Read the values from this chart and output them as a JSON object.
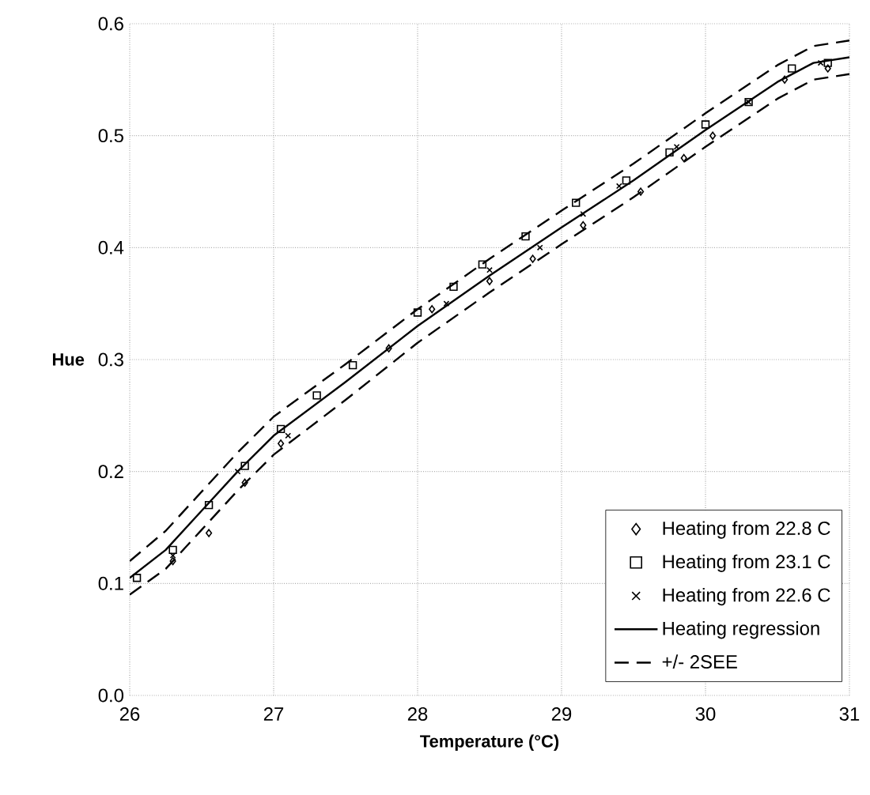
{
  "chart_data": {
    "type": "scatter",
    "xlabel": "Temperature (°C)",
    "ylabel": "Hue",
    "xlim": [
      26,
      31
    ],
    "ylim": [
      0,
      0.6
    ],
    "xticks": [
      26,
      27,
      28,
      29,
      30,
      31
    ],
    "yticks": [
      {
        "value": 0,
        "label": "0.0"
      },
      0.1,
      0.2,
      0.3,
      0.4,
      0.5,
      0.6
    ],
    "grid": true,
    "legend": "bottom right",
    "series": [
      {
        "name": "Heating from 22.8 C",
        "color": "#000000",
        "marker": "diamond",
        "x": [
          26.3,
          26.55,
          26.8,
          27.05,
          27.8,
          28.1,
          28.5,
          28.8,
          29.15,
          29.55,
          29.85,
          30.05,
          30.55,
          30.85
        ],
        "values": [
          0.12,
          0.145,
          0.19,
          0.225,
          0.31,
          0.345,
          0.37,
          0.39,
          0.42,
          0.45,
          0.48,
          0.5,
          0.55,
          0.56
        ]
      },
      {
        "name": "Heating from 23.1 C",
        "color": "#000000",
        "marker": "square",
        "x": [
          26.05,
          26.3,
          26.55,
          26.8,
          27.05,
          27.3,
          27.55,
          28.0,
          28.25,
          28.45,
          28.75,
          29.1,
          29.45,
          29.75,
          30.0,
          30.3,
          30.6,
          30.85
        ],
        "values": [
          0.105,
          0.13,
          0.17,
          0.205,
          0.238,
          0.268,
          0.295,
          0.342,
          0.365,
          0.385,
          0.41,
          0.44,
          0.46,
          0.485,
          0.51,
          0.53,
          0.56,
          0.565
        ]
      },
      {
        "name": "Heating from 22.6 C",
        "color": "#000000",
        "marker": "cross",
        "x": [
          26.3,
          26.75,
          27.1,
          28.2,
          28.5,
          28.85,
          29.15,
          29.4,
          29.8,
          30.3,
          30.8
        ],
        "values": [
          0.125,
          0.2,
          0.232,
          0.35,
          0.38,
          0.4,
          0.43,
          0.455,
          0.49,
          0.53,
          0.565
        ]
      },
      {
        "name": "Heating regression",
        "type": "line",
        "line_style": "solid",
        "color": "#000000",
        "marker": "none",
        "x": [
          26,
          26.25,
          26.5,
          26.75,
          27,
          27.5,
          28,
          28.5,
          29,
          29.5,
          30,
          30.5,
          30.75,
          31
        ],
        "values": [
          0.105,
          0.13,
          0.165,
          0.2,
          0.232,
          0.28,
          0.33,
          0.375,
          0.418,
          0.46,
          0.505,
          0.548,
          0.565,
          0.57
        ]
      },
      {
        "name": "+/- 2SEE",
        "type": "line",
        "line_style": "dashed",
        "color": "#000000",
        "marker": "none",
        "x": [
          26,
          26.25,
          26.5,
          26.75,
          27,
          27.5,
          28,
          28.5,
          29,
          29.5,
          30,
          30.5,
          30.75,
          31
        ],
        "values": [
          0.12,
          0.147,
          0.182,
          0.217,
          0.249,
          0.296,
          0.345,
          0.39,
          0.433,
          0.475,
          0.52,
          0.563,
          0.58,
          0.585
        ]
      },
      {
        "type": "line",
        "line_style": "dashed",
        "color": "#000000",
        "marker": "none",
        "x": [
          26,
          26.25,
          26.5,
          26.75,
          27,
          27.5,
          28,
          28.5,
          29,
          29.5,
          30,
          30.5,
          30.75,
          31
        ],
        "values": [
          0.09,
          0.113,
          0.148,
          0.183,
          0.215,
          0.264,
          0.315,
          0.36,
          0.403,
          0.445,
          0.49,
          0.533,
          0.55,
          0.555
        ]
      }
    ]
  }
}
